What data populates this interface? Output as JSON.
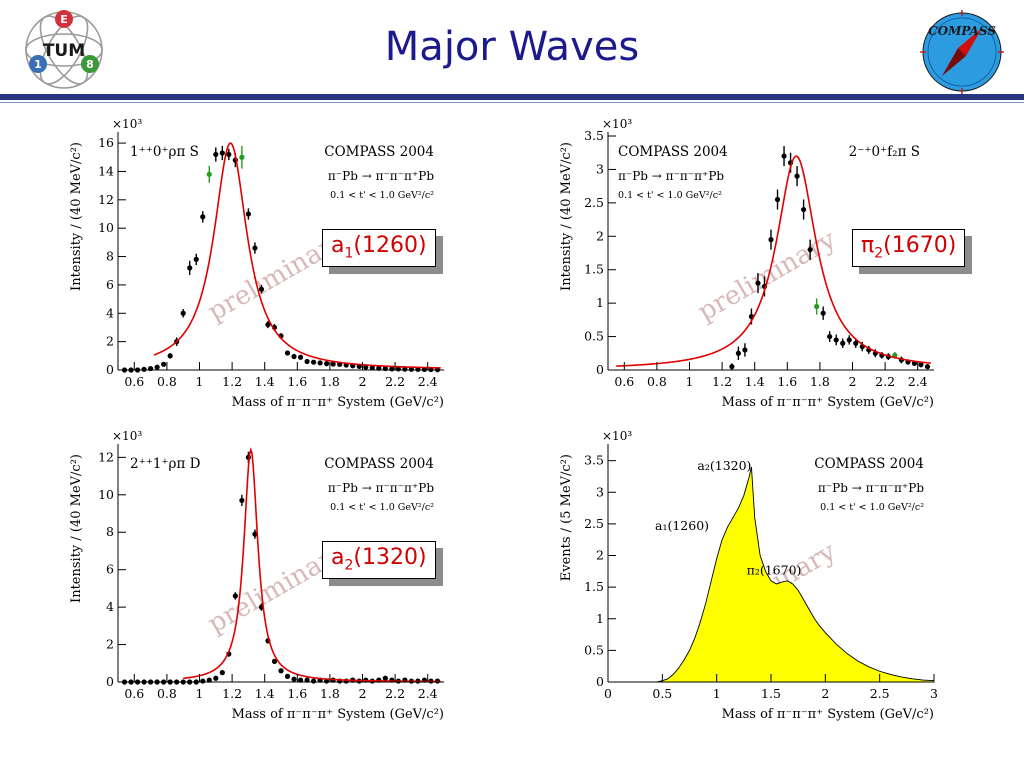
{
  "slide": {
    "title": "Major Waves"
  },
  "logos": {
    "tum": {
      "letter_top": "E",
      "text": "TUM",
      "letter_left": "1",
      "letter_right": "8",
      "colors": [
        "#d4323a",
        "#3a6fb5",
        "#3a9a3a",
        "#1a1a1a"
      ]
    },
    "compass": {
      "text": "COMPASS",
      "colors": [
        "#2d9be0",
        "#d01010",
        "#1a1a1a"
      ]
    }
  },
  "callouts": [
    {
      "base": "a",
      "sub": "1",
      "mass": "(1260)"
    },
    {
      "base": "π",
      "sub": "2",
      "mass": "(1670)"
    },
    {
      "base": "a",
      "sub": "2",
      "mass": "(1320)"
    }
  ],
  "chart_data": [
    {
      "type": "scatter",
      "title": "1⁺⁺0⁺ρπ S",
      "experiment": "COMPASS 2004",
      "reaction": "π⁻Pb → π⁻π⁻π⁺Pb",
      "cut": "0.1 < t' < 1.0 GeV²/c²",
      "watermark": "preliminary",
      "xlabel": "Mass of π⁻π⁻π⁺ System (GeV/c²)",
      "ylabel": "Intensity / (40 MeV/c²)",
      "y_multiplier": "×10³",
      "xlim": [
        0.5,
        2.5
      ],
      "ylim": [
        0,
        16.5
      ],
      "xticks": [
        "0.6",
        "0.8",
        "1",
        "1.2",
        "1.4",
        "1.6",
        "1.8",
        "2",
        "2.2",
        "2.4"
      ],
      "yticks": [
        "0",
        "2",
        "4",
        "6",
        "8",
        "10",
        "12",
        "14",
        "16"
      ],
      "legend_position": "top-right",
      "series": [
        {
          "x": [
            0.54,
            0.58,
            0.62,
            0.66,
            0.7,
            0.74,
            0.78,
            0.82,
            0.86,
            0.9,
            0.94,
            0.98,
            1.02,
            1.06,
            1.1,
            1.14,
            1.18,
            1.22,
            1.26,
            1.3,
            1.34,
            1.38,
            1.42,
            1.46,
            1.5,
            1.54,
            1.58,
            1.62,
            1.66,
            1.7,
            1.74,
            1.78,
            1.82,
            1.86,
            1.9,
            1.94,
            1.98,
            2.02,
            2.06,
            2.1,
            2.14,
            2.18,
            2.22,
            2.26,
            2.3,
            2.34,
            2.38,
            2.42,
            2.46
          ],
          "y": [
            0,
            0,
            0,
            0.05,
            0.1,
            0.2,
            0.4,
            1,
            2,
            4,
            7.2,
            7.8,
            10.8,
            13.8,
            15.2,
            15.3,
            15.2,
            14.8,
            15.0,
            11,
            8.6,
            5.7,
            3.2,
            3.0,
            2.4,
            1.2,
            0.95,
            0.9,
            0.6,
            0.55,
            0.5,
            0.45,
            0.42,
            0.4,
            0.35,
            0.3,
            0.25,
            0.2,
            0.15,
            0.12,
            0.1,
            0.08,
            0.08,
            0.06,
            0.05,
            0.05,
            0.04,
            0.03,
            0.02
          ],
          "err": [
            0.05,
            0.05,
            0.05,
            0.1,
            0.1,
            0.1,
            0.15,
            0.2,
            0.3,
            0.3,
            0.5,
            0.4,
            0.4,
            0.6,
            0.5,
            0.5,
            0.4,
            0.5,
            0.8,
            0.4,
            0.4,
            0.3,
            0.25,
            0.25,
            0.2,
            0.15,
            0.12,
            0.12,
            0.1,
            0.1,
            0.1,
            0.1,
            0.1,
            0.1,
            0.1,
            0.1,
            0.1,
            0.1,
            0.1,
            0.1,
            0.1,
            0.1,
            0.1,
            0.1,
            0.1,
            0.1,
            0.1,
            0.1,
            0.1
          ],
          "green": [
            13,
            18
          ]
        },
        {
          "fit": "bw",
          "m": 1.19,
          "w": 0.25,
          "peak": 16.0,
          "fit_range": [
            0.72,
            2.48
          ],
          "color": "#e00000"
        }
      ]
    },
    {
      "type": "scatter",
      "title": "2⁻⁺0⁺f₂π S",
      "experiment": "COMPASS 2004",
      "reaction": "π⁻Pb → π⁻π⁻π⁺Pb",
      "cut": "0.1 < t' < 1.0 GeV²/c²",
      "watermark": "preliminary",
      "xlabel": "Mass of π⁻π⁻π⁺ System (GeV/c²)",
      "ylabel": "Intensity / (40 MeV/c²)",
      "y_multiplier": "×10³",
      "xlim": [
        0.5,
        2.5
      ],
      "ylim": [
        0,
        3.5
      ],
      "xticks": [
        "0.6",
        "0.8",
        "1",
        "1.2",
        "1.4",
        "1.6",
        "1.8",
        "2",
        "2.2",
        "2.4"
      ],
      "yticks": [
        "0",
        "0.5",
        "1",
        "1.5",
        "2",
        "2.5",
        "3",
        "3.5"
      ],
      "legend_position": "top-left",
      "series": [
        {
          "x": [
            1.26,
            1.3,
            1.34,
            1.38,
            1.42,
            1.46,
            1.5,
            1.54,
            1.58,
            1.62,
            1.66,
            1.7,
            1.74,
            1.78,
            1.82,
            1.86,
            1.9,
            1.94,
            1.98,
            2.02,
            2.06,
            2.1,
            2.14,
            2.18,
            2.22,
            2.26,
            2.3,
            2.34,
            2.38,
            2.42,
            2.46
          ],
          "y": [
            0.05,
            0.25,
            0.3,
            0.8,
            1.3,
            1.25,
            1.95,
            2.55,
            3.2,
            3.1,
            2.9,
            2.4,
            1.8,
            0.95,
            0.85,
            0.5,
            0.45,
            0.4,
            0.45,
            0.4,
            0.35,
            0.3,
            0.25,
            0.22,
            0.2,
            0.22,
            0.15,
            0.12,
            0.1,
            0.08,
            0.05
          ],
          "err": [
            0.05,
            0.1,
            0.1,
            0.12,
            0.15,
            0.15,
            0.15,
            0.15,
            0.15,
            0.15,
            0.15,
            0.15,
            0.15,
            0.12,
            0.1,
            0.08,
            0.08,
            0.07,
            0.07,
            0.07,
            0.07,
            0.06,
            0.06,
            0.05,
            0.05,
            0.05,
            0.05,
            0.04,
            0.04,
            0.04,
            0.03
          ],
          "green": [
            13,
            25
          ]
        },
        {
          "fit": "bw",
          "m": 1.655,
          "w": 0.3,
          "peak": 3.2,
          "fit_range": [
            0.55,
            2.48
          ],
          "color": "#e00000"
        }
      ]
    },
    {
      "type": "scatter",
      "title": "2⁺⁺1⁺ρπ D",
      "experiment": "COMPASS 2004",
      "reaction": "π⁻Pb → π⁻π⁻π⁺Pb",
      "cut": "0.1 < t' < 1.0 GeV²/c²",
      "watermark": "preliminary",
      "xlabel": "Mass of π⁻π⁻π⁺ System (GeV/c²)",
      "ylabel": "Intensity / (40 MeV/c²)",
      "y_multiplier": "×10³",
      "xlim": [
        0.5,
        2.5
      ],
      "ylim": [
        0,
        12.5
      ],
      "xticks": [
        "0.6",
        "0.8",
        "1",
        "1.2",
        "1.4",
        "1.6",
        "1.8",
        "2",
        "2.2",
        "2.4"
      ],
      "yticks": [
        "0",
        "2",
        "4",
        "6",
        "8",
        "10",
        "12"
      ],
      "legend_position": "top-right",
      "series": [
        {
          "x": [
            0.54,
            0.58,
            0.62,
            0.66,
            0.7,
            0.74,
            0.78,
            0.82,
            0.86,
            0.9,
            0.94,
            0.98,
            1.02,
            1.06,
            1.1,
            1.14,
            1.18,
            1.22,
            1.26,
            1.3,
            1.34,
            1.38,
            1.42,
            1.46,
            1.5,
            1.54,
            1.58,
            1.62,
            1.66,
            1.7,
            1.74,
            1.78,
            1.82,
            1.86,
            1.9,
            1.94,
            1.98,
            2.02,
            2.06,
            2.1,
            2.14,
            2.18,
            2.22,
            2.26,
            2.3,
            2.34,
            2.38,
            2.42,
            2.46
          ],
          "y": [
            0,
            0,
            0,
            0,
            0,
            0,
            0,
            0,
            0,
            0,
            0,
            0,
            0.05,
            0.1,
            0.2,
            0.5,
            1.5,
            4.6,
            9.7,
            12.0,
            7.9,
            4.0,
            2.2,
            1.1,
            0.6,
            0.3,
            0.15,
            0.1,
            0.1,
            0.05,
            0.1,
            0.05,
            0.1,
            0.05,
            0.05,
            0.1,
            0.05,
            0.1,
            0.05,
            0.1,
            0.2,
            0.1,
            0.05,
            0.1,
            0.05,
            0.05,
            0.1,
            0.05,
            0.05
          ],
          "err": [
            0.05,
            0.05,
            0.05,
            0.05,
            0.05,
            0.05,
            0.05,
            0.05,
            0.05,
            0.05,
            0.05,
            0.05,
            0.05,
            0.05,
            0.08,
            0.1,
            0.15,
            0.2,
            0.3,
            0.3,
            0.25,
            0.2,
            0.15,
            0.1,
            0.08,
            0.06,
            0.05,
            0.05,
            0.05,
            0.05,
            0.05,
            0.05,
            0.05,
            0.05,
            0.05,
            0.05,
            0.05,
            0.05,
            0.05,
            0.05,
            0.05,
            0.05,
            0.05,
            0.05,
            0.05,
            0.05,
            0.05,
            0.05,
            0.05
          ],
          "green": []
        },
        {
          "fit": "bw",
          "m": 1.315,
          "w": 0.105,
          "peak": 12.4,
          "fit_range": [
            0.9,
            2.48
          ],
          "color": "#e00000"
        }
      ]
    },
    {
      "type": "area",
      "experiment": "COMPASS 2004",
      "reaction": "π⁻Pb → π⁻π⁻π⁺Pb",
      "cut": "0.1 < t' < 1.0 GeV²/c²",
      "watermark": "preliminary",
      "xlabel": "Mass of π⁻π⁻π⁺ System (GeV/c²)",
      "ylabel": "Events / (5 MeV/c²)",
      "y_multiplier": "×10³",
      "xlim": [
        0,
        3
      ],
      "ylim": [
        0,
        3.7
      ],
      "xticks": [
        "0",
        "0.5",
        "1",
        "1.5",
        "2",
        "2.5",
        "3"
      ],
      "yticks": [
        "0",
        "0.5",
        "1",
        "1.5",
        "2",
        "2.5",
        "3",
        "3.5"
      ],
      "legend_position": "top-right",
      "annotations": [
        {
          "text": "a₂(1320)",
          "x": 1.32,
          "y": 3.35
        },
        {
          "text": "a₁(1260)",
          "x": 0.93,
          "y": 2.4
        },
        {
          "text": "π₂(1670)",
          "x": 1.78,
          "y": 1.7
        }
      ],
      "series": [
        {
          "x": [
            0.45,
            0.5,
            0.55,
            0.6,
            0.65,
            0.7,
            0.75,
            0.8,
            0.85,
            0.9,
            0.95,
            1.0,
            1.05,
            1.1,
            1.15,
            1.2,
            1.25,
            1.3,
            1.32,
            1.35,
            1.4,
            1.45,
            1.5,
            1.55,
            1.6,
            1.65,
            1.7,
            1.75,
            1.8,
            1.85,
            1.9,
            1.95,
            2.0,
            2.1,
            2.2,
            2.3,
            2.4,
            2.5,
            2.6,
            2.7,
            2.8,
            2.9,
            3.0
          ],
          "y": [
            0.0,
            0.02,
            0.05,
            0.12,
            0.22,
            0.35,
            0.5,
            0.7,
            0.95,
            1.25,
            1.6,
            1.95,
            2.25,
            2.45,
            2.6,
            2.75,
            2.95,
            3.25,
            3.4,
            2.6,
            2.0,
            1.75,
            1.6,
            1.55,
            1.58,
            1.6,
            1.55,
            1.45,
            1.3,
            1.15,
            1.0,
            0.88,
            0.78,
            0.6,
            0.45,
            0.33,
            0.24,
            0.17,
            0.12,
            0.08,
            0.05,
            0.03,
            0.02
          ]
        }
      ]
    }
  ]
}
